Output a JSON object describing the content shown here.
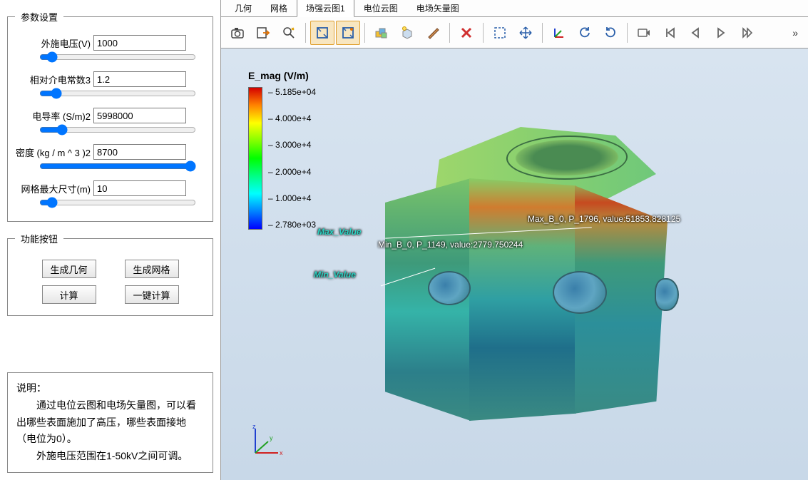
{
  "sidebar": {
    "params_legend": "参数设置",
    "params": [
      {
        "label": "外施电压(V)",
        "value": "1000",
        "slider": 5
      },
      {
        "label": "相对介电常数3",
        "value": "1.2",
        "slider": 8
      },
      {
        "label": "电导率 (S/m)2",
        "value": "5998000",
        "slider": 12
      },
      {
        "label": "密度 (kg / m ^ 3 )2",
        "value": "8700",
        "slider": 100
      },
      {
        "label": "网格最大尺寸(m)",
        "value": "10",
        "slider": 5
      }
    ],
    "buttons_legend": "功能按钮",
    "buttons": {
      "gen_geom": "生成几何",
      "gen_mesh": "生成网格",
      "compute": "计算",
      "one_click": "一键计算"
    },
    "desc_title": "说明：",
    "desc_p1": "　　通过电位云图和电场矢量图，可以看出哪些表面施加了高压，哪些表面接地（电位为0）。",
    "desc_p2": "　　外施电压范围在1-50kV之间可调。"
  },
  "tabs": [
    {
      "label": "几何",
      "active": false
    },
    {
      "label": "网格",
      "active": false
    },
    {
      "label": "场强云图1",
      "active": true
    },
    {
      "label": "电位云图",
      "active": false
    },
    {
      "label": "电场矢量图",
      "active": false
    }
  ],
  "toolbar": {
    "overflow": "»",
    "items": [
      {
        "name": "camera-icon",
        "grp": 0,
        "toggled": false
      },
      {
        "name": "export-icon",
        "grp": 0,
        "toggled": false
      },
      {
        "name": "zoom-search-icon",
        "grp": 0,
        "toggled": false
      },
      {
        "name": "zoom-window-icon",
        "grp": 1,
        "toggled": true
      },
      {
        "name": "zoom-extents-icon",
        "grp": 1,
        "toggled": true
      },
      {
        "name": "multi-cube-icon",
        "grp": 2,
        "toggled": false
      },
      {
        "name": "light-cube-icon",
        "grp": 2,
        "toggled": false
      },
      {
        "name": "brush-icon",
        "grp": 2,
        "toggled": false
      },
      {
        "name": "delete-x-icon",
        "grp": 3,
        "toggled": false
      },
      {
        "name": "select-box-icon",
        "grp": 4,
        "toggled": false
      },
      {
        "name": "move-icon",
        "grp": 4,
        "toggled": false
      },
      {
        "name": "axes-xyz-icon",
        "grp": 5,
        "toggled": false
      },
      {
        "name": "rotate-ccw-icon",
        "grp": 5,
        "toggled": false
      },
      {
        "name": "rotate-cw-icon",
        "grp": 5,
        "toggled": false
      },
      {
        "name": "record-icon",
        "grp": 6,
        "toggled": false
      },
      {
        "name": "step-first-icon",
        "grp": 6,
        "toggled": false
      },
      {
        "name": "step-back-icon",
        "grp": 6,
        "toggled": false
      },
      {
        "name": "play-icon",
        "grp": 6,
        "toggled": false
      },
      {
        "name": "step-fwd-icon",
        "grp": 6,
        "toggled": false
      }
    ]
  },
  "legend": {
    "title": "E_mag (V/m)",
    "ticks": [
      "5.185e+04",
      "4.000e+4",
      "3.000e+4",
      "2.000e+4",
      "1.000e+4",
      "2.780e+03"
    ],
    "colors_top_to_bottom": [
      "#d40000",
      "#ff7f00",
      "#ffff00",
      "#7fff00",
      "#00ff00",
      "#00ff7f",
      "#00ffff",
      "#007fff",
      "#0000ff"
    ]
  },
  "annotations": {
    "max_label": "Max_Value",
    "min_label": "Min_Value",
    "max_point": "Max_B_0, P_1796, value:51853.828125",
    "min_point": "Min_B_0, P_1149, value:2779.750244"
  },
  "triad": {
    "axes": [
      "x",
      "y",
      "z"
    ],
    "colors": {
      "x": "#d02020",
      "y": "#20a020",
      "z": "#2040d0"
    }
  },
  "viewport": {
    "bg_top": "#d8e4f0",
    "bg_bottom": "#c8d8e8"
  }
}
